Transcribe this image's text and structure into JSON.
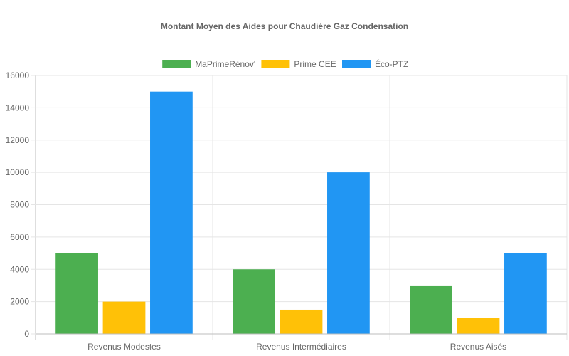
{
  "chart_data": {
    "type": "bar",
    "title": "Montant Moyen des Aides pour Chaudière Gaz Condensation",
    "categories": [
      "Revenus Modestes",
      "Revenus Intermédiaires",
      "Revenus Aisés"
    ],
    "series": [
      {
        "name": "MaPrimeRénov'",
        "color": "#4caf50",
        "values": [
          5000,
          4000,
          3000
        ]
      },
      {
        "name": "Prime CEE",
        "color": "#ffc107",
        "values": [
          2000,
          1500,
          1000
        ]
      },
      {
        "name": "Éco-PTZ",
        "color": "#2196f3",
        "values": [
          15000,
          10000,
          5000
        ]
      }
    ],
    "ylim": [
      0,
      16000
    ],
    "yticks": [
      0,
      2000,
      4000,
      6000,
      8000,
      10000,
      12000,
      14000,
      16000
    ],
    "xlabel": "",
    "ylabel": "",
    "grid": true,
    "legend_position": "top-center"
  }
}
